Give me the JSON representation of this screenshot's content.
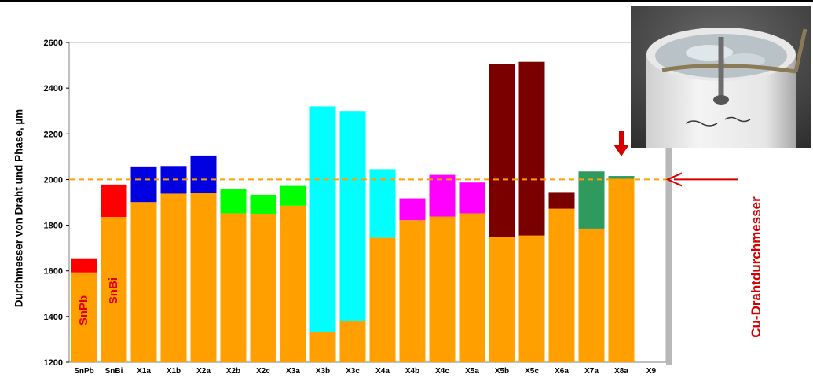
{
  "chart_data": {
    "type": "bar",
    "stacked": true,
    "categories": [
      "SnPb",
      "SnBi",
      "X1a",
      "X1b",
      "X2a",
      "X2b",
      "X2c",
      "X3a",
      "X3b",
      "X3c",
      "X4a",
      "X4b",
      "X4c",
      "X5a",
      "X5b",
      "X5c",
      "X6a",
      "X7a",
      "X8a",
      "X9"
    ],
    "bars": [
      {
        "category": "SnPb",
        "base": 1593,
        "top": 1655,
        "color": "#ff0000"
      },
      {
        "category": "SnBi",
        "base": 1836,
        "top": 1978,
        "color": "#ff0000"
      },
      {
        "category": "X1a",
        "base": 1901,
        "top": 2057,
        "color": "#0000e0"
      },
      {
        "category": "X1b",
        "base": 1938,
        "top": 2059,
        "color": "#0000e0"
      },
      {
        "category": "X2a",
        "base": 1940,
        "top": 2105,
        "color": "#0000e0"
      },
      {
        "category": "X2b",
        "base": 1852,
        "top": 1960,
        "color": "#00ff00"
      },
      {
        "category": "X2c",
        "base": 1850,
        "top": 1933,
        "color": "#00ff00"
      },
      {
        "category": "X3a",
        "base": 1885,
        "top": 1972,
        "color": "#00ff00"
      },
      {
        "category": "X3b",
        "base": 1333,
        "top": 2320,
        "color": "#00ffff"
      },
      {
        "category": "X3c",
        "base": 1382,
        "top": 2300,
        "color": "#00ffff"
      },
      {
        "category": "X4a",
        "base": 1745,
        "top": 2045,
        "color": "#00ffff"
      },
      {
        "category": "X4b",
        "base": 1822,
        "top": 1917,
        "color": "#ff00ff"
      },
      {
        "category": "X4c",
        "base": 1838,
        "top": 2020,
        "color": "#ff00ff"
      },
      {
        "category": "X5a",
        "base": 1852,
        "top": 1987,
        "color": "#ff00ff"
      },
      {
        "category": "X5b",
        "base": 1750,
        "top": 2505,
        "color": "#7a0000"
      },
      {
        "category": "X5c",
        "base": 1755,
        "top": 2515,
        "color": "#7a0000"
      },
      {
        "category": "X6a",
        "base": 1872,
        "top": 1945,
        "color": "#7a0000"
      },
      {
        "category": "X7a",
        "base": 1785,
        "top": 2035,
        "color": "#2e9a5e"
      },
      {
        "category": "X8a",
        "base": 2003,
        "top": 2015,
        "color": "#2e9a5e"
      },
      {
        "category": "X9",
        "base": null,
        "top": null,
        "color": null
      }
    ],
    "base_color": "#ffa000",
    "ylim": [
      1200,
      2600
    ],
    "yticks": [
      1200,
      1400,
      1600,
      1800,
      2000,
      2200,
      2400,
      2600
    ],
    "ylabel": "Durchmesser von Draht und Phase, µm",
    "reference_line": {
      "value": 2000,
      "color": "#ffa000",
      "style": "dashed"
    },
    "bar_labels": [
      {
        "category": "SnPb",
        "text": "SnPb"
      },
      {
        "category": "SnBi",
        "text": "SnBi"
      }
    ],
    "annotation": {
      "text": "Cu-Drahtdurchmesser",
      "color": "#d40000"
    },
    "grid": false,
    "legend": "none"
  },
  "photo": {
    "description_icon": "solder-cup-photo-icon"
  }
}
